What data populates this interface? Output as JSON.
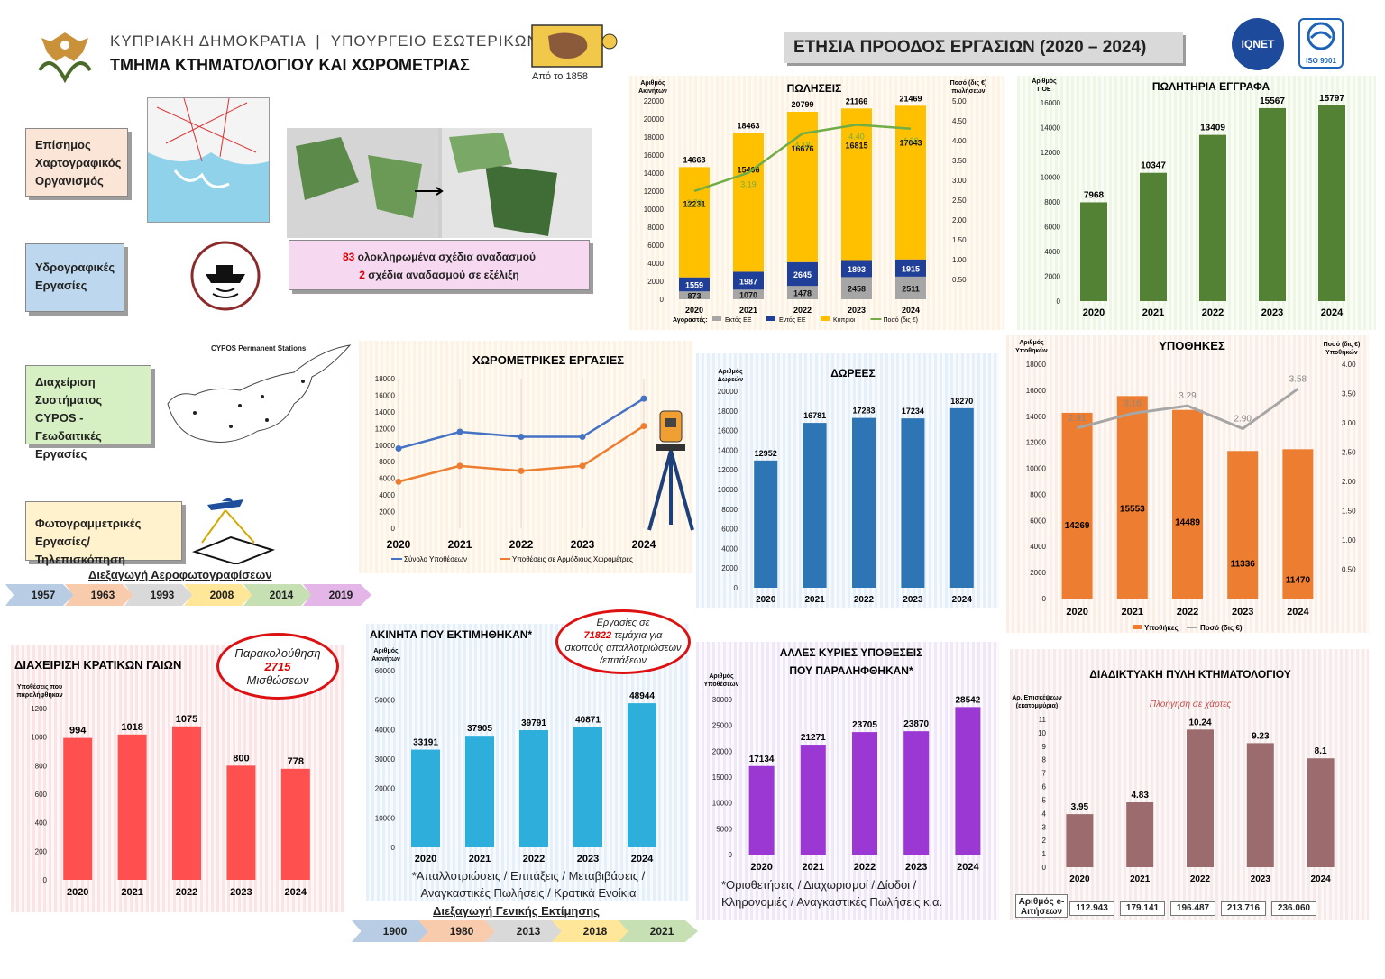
{
  "header": {
    "org_line": "ΚΥΠΡΙΑΚΗ ΔΗΜΟΚΡΑΤΙΑ  |  ΥΠΟΥΡΓΕΙΟ ΕΣΩΤΕΡΙΚΩΝ",
    "dept_line": "ΤΜΗΜΑ ΚΤΗΜΑΤΟΛΟΓΙΟΥ ΚΑΙ ΧΩΡΟΜΕΤΡΙΑΣ",
    "since": "Από το 1858",
    "banner": "ΕΤΗΣΙΑ ΠΡΟΟΔΟΣ ΕΡΓΑΣΙΩΝ (2020 – 2024)",
    "cert1": "IQNET",
    "cert2": "ISO 9001"
  },
  "side_boxes": {
    "cartographic": "Επίσημος Χαρτογραφικός Οργανισμός",
    "hydrographic": "Υδρογραφικές Εργασίες",
    "cypos": "Διαχείριση Συστήματος CYPOS - Γεωδαιτικές Εργασίες",
    "photogrammetry": "Φωτογραμμετρικές Εργασίες/Τηλεπισκόπηση"
  },
  "cypos_map_title": "CYPOS Permanent Stations",
  "consolidation": {
    "count1": "83",
    "text1": " ολοκληρωμένα σχέδια αναδασμού",
    "count2": "2",
    "text2": " σχέδια αναδασμού σε εξέλιξη"
  },
  "aerial_timeline": {
    "label": "Διεξαγωγή Αεροφωτογραφίσεων",
    "years": [
      "1957",
      "1963",
      "1993",
      "2008",
      "2014",
      "2019"
    ],
    "colors": [
      "#b8cce4",
      "#f8cbad",
      "#d9d9d9",
      "#ffe699",
      "#c6e0b4",
      "#e4b6e8"
    ]
  },
  "valuation_timeline": {
    "label": "Διεξαγωγή Γενικής Εκτίμησης",
    "years": [
      "1900",
      "1980",
      "2013",
      "2018",
      "2021"
    ],
    "colors": [
      "#b8cce4",
      "#f8cbad",
      "#d9d9d9",
      "#ffe699",
      "#c6e0b4"
    ]
  },
  "ovals": {
    "leases_line1": "Παρακολούθηση",
    "leases_value": "2715",
    "leases_line2": "Μισθώσεων",
    "expro_line1": "Εργασίες σε",
    "expro_value": "71822",
    "expro_line2": " τεμάχια για",
    "expro_line3": "σκοπούς απαλλοτριώσεων",
    "expro_line4": "/επιτάξεων"
  },
  "notes": {
    "valued_note": "*Απαλλοτριώσεις / Επιτάξεις / Μεταβιβάσεις / Αναγκαστικές Πωλήσεις / Κρατικά Ενοίκια",
    "other_note": "*Οριοθετήσεις / Διαχωρισμοί / Δίοδοι / Κληρονομιές / Αναγκαστικές Πωλήσεις κ.α."
  },
  "portal_counts": {
    "label": "Αριθμός e-Αιτήσεων",
    "values": [
      "112.943",
      "179.141",
      "196.487",
      "213.716",
      "236.060"
    ]
  },
  "chart_data": [
    {
      "id": "sales",
      "type": "bar",
      "title": "ΠΩΛΗΣΕΙΣ",
      "ylabel": "Αριθμός Ακινήτων",
      "y2label": "Ποσό (δις €) πωλήσεων",
      "categories": [
        "2020",
        "2021",
        "2022",
        "2023",
        "2024"
      ],
      "stacked": true,
      "ylim": [
        0,
        22000
      ],
      "y2lim": [
        0,
        5
      ],
      "legend_prefix": "Αγοραστές:",
      "series": [
        {
          "name": "Εκτός ΕΕ",
          "values": [
            873,
            1070,
            1478,
            2458,
            2511
          ],
          "color": "#a6a6a6"
        },
        {
          "name": "Εντός ΕΕ",
          "values": [
            1559,
            1987,
            2645,
            1893,
            1915
          ],
          "color": "#1f3f99"
        },
        {
          "name": "Κύπριοι",
          "values": [
            12231,
            15406,
            16676,
            16815,
            17043
          ],
          "color": "#ffc000"
        },
        {
          "name": "Ποσό (δις €)",
          "type": "line",
          "axis": "y2",
          "values": [
            2.73,
            3.19,
            4.18,
            4.4,
            4.3
          ],
          "color": "#70ad47"
        }
      ],
      "totals": [
        14663,
        18463,
        20799,
        21166,
        21469
      ]
    },
    {
      "id": "documents",
      "type": "bar",
      "title": "ΠΩΛΗΤΗΡΙΑ ΕΓΓΡΑΦΑ",
      "ylabel": "Αριθμός ΠΟΕ",
      "categories": [
        "2020",
        "2021",
        "2022",
        "2023",
        "2024"
      ],
      "values": [
        7968,
        10347,
        13409,
        15567,
        15797
      ],
      "ylim": [
        0,
        16000
      ],
      "color": "#548235"
    },
    {
      "id": "surveys",
      "type": "line",
      "title": "ΧΩΡΟΜΕΤΡΙΚΕΣ ΕΡΓΑΣΙΕΣ",
      "categories": [
        "2020",
        "2021",
        "2022",
        "2023",
        "2024"
      ],
      "ylim": [
        0,
        18000
      ],
      "series": [
        {
          "name": "Σύνολο Υποθέσεων",
          "values": [
            9600,
            11600,
            11000,
            11000,
            15600
          ],
          "color": "#4472c4"
        },
        {
          "name": "Υποθέσεις σε Αρμόδιους Χωρομέτρες",
          "values": [
            5600,
            7500,
            6900,
            7500,
            12300
          ],
          "color": "#ed7d31"
        }
      ]
    },
    {
      "id": "gifts",
      "type": "bar",
      "title": "ΔΩΡΕΕΣ",
      "ylabel": "Αριθμός Δωρεών",
      "categories": [
        "2020",
        "2021",
        "2022",
        "2023",
        "2024"
      ],
      "values": [
        12952,
        16781,
        17283,
        17234,
        18270
      ],
      "ylim": [
        0,
        20000
      ],
      "color": "#2e75b6"
    },
    {
      "id": "mortgages",
      "type": "bar",
      "title": "ΥΠΟΘΗΚΕΣ",
      "ylabel": "Αριθμός Υποθηκών",
      "y2label": "Ποσό (δις €) Υποθηκών",
      "categories": [
        "2020",
        "2021",
        "2022",
        "2023",
        "2024"
      ],
      "ylim": [
        0,
        18000
      ],
      "y2lim": [
        0,
        4
      ],
      "series": [
        {
          "name": "Υποθήκες",
          "values": [
            14269,
            15553,
            14489,
            11336,
            11470
          ],
          "color": "#ed7d31"
        },
        {
          "name": "Ποσό (δις €)",
          "type": "line",
          "axis": "y2",
          "values": [
            2.91,
            3.16,
            3.29,
            2.9,
            3.58
          ],
          "color": "#a6a6a6"
        }
      ]
    },
    {
      "id": "state_land",
      "type": "bar",
      "title": "ΔΙΑΧΕΙΡΙΣΗ ΚΡΑΤΙΚΩΝ ΓΑΙΩΝ",
      "ylabel": "Υποθέσεις που παραλήφθηκαν",
      "categories": [
        "2020",
        "2021",
        "2022",
        "2023",
        "2024"
      ],
      "values": [
        994,
        1018,
        1075,
        800,
        778
      ],
      "ylim": [
        0,
        1200
      ],
      "color": "#ff5050"
    },
    {
      "id": "valued",
      "type": "bar",
      "title": "ΑΚΙΝΗΤΑ ΠΟΥ ΕΚΤΙΜΗΘΗΚΑΝ*",
      "ylabel": "Αριθμός Ακινήτων",
      "categories": [
        "2020",
        "2021",
        "2022",
        "2023",
        "2024"
      ],
      "values": [
        33191,
        37905,
        39791,
        40871,
        48944
      ],
      "ylim": [
        0,
        60000
      ],
      "color": "#2eaedb"
    },
    {
      "id": "other_cases",
      "type": "bar",
      "title": "ΑΛΛΕΣ ΚΥΡΙΕΣ ΥΠΟΘΕΣΕΙΣ ΠΟΥ ΠΑΡΑΛΗΦΘΗΚΑΝ*",
      "ylabel": "Αριθμός Υποθέσεων",
      "categories": [
        "2020",
        "2021",
        "2022",
        "2023",
        "2024"
      ],
      "values": [
        17134,
        21271,
        23705,
        23870,
        28542
      ],
      "ylim": [
        0,
        30000
      ],
      "color": "#9b37d3"
    },
    {
      "id": "portal",
      "type": "bar",
      "title": "ΔΙΑΔΙΚΤΥΑΚΗ ΠΥΛΗ ΚΤΗΜΑΤΟΛΟΓΙΟΥ",
      "subtitle": "Πλοήγηση σε χάρτες",
      "ylabel": "Αρ. Επισκέψεων (εκατομμύρια)",
      "categories": [
        "2020",
        "2021",
        "2022",
        "2023",
        "2024"
      ],
      "values": [
        3.95,
        4.83,
        10.24,
        9.23,
        8.1
      ],
      "ylim": [
        0,
        11
      ],
      "color": "#9b6b6e"
    }
  ]
}
